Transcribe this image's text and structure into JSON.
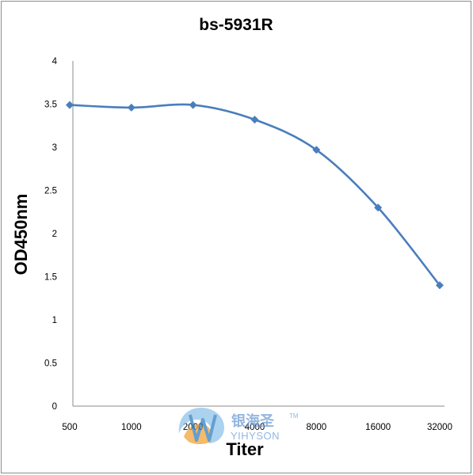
{
  "chart_data": {
    "type": "line",
    "title": "bs-5931R",
    "xlabel": "Titer",
    "ylabel": "OD450nm",
    "categories": [
      "500",
      "1000",
      "2000",
      "4000",
      "8000",
      "16000",
      "32000"
    ],
    "series": [
      {
        "values": [
          3.49,
          3.46,
          3.49,
          3.32,
          2.97,
          2.3,
          1.4
        ]
      }
    ],
    "ylim": [
      0,
      4
    ],
    "yticks": [
      "0",
      "0.5",
      "1",
      "1.5",
      "2",
      "2.5",
      "3",
      "3.5",
      "4"
    ],
    "line_color": "#4a7ebb",
    "marker": "diamond",
    "grid": false,
    "legend": "none"
  },
  "watermark": {
    "cn": "银海圣",
    "en": "YIHYSON",
    "tm": "TM"
  }
}
